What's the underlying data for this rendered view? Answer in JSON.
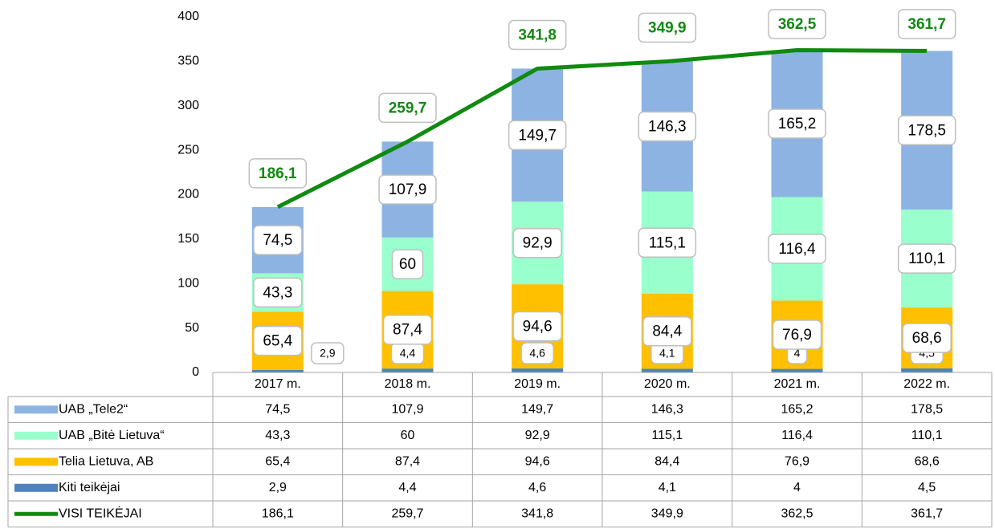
{
  "chart_data": {
    "type": "bar",
    "stacked": true,
    "categories": [
      "2017 m.",
      "2018 m.",
      "2019 m.",
      "2020 m.",
      "2021 m.",
      "2022 m."
    ],
    "series": [
      {
        "name": "UAB „Tele2“",
        "color": "#8db3e2",
        "values": [
          74.5,
          107.9,
          149.7,
          146.3,
          165.2,
          178.5
        ],
        "value_labels": [
          "74,5",
          "107,9",
          "149,7",
          "146,3",
          "165,2",
          "178,5"
        ]
      },
      {
        "name": "UAB „Bitė Lietuva“",
        "color": "#99ffcc",
        "values": [
          43.3,
          60,
          92.9,
          115.1,
          116.4,
          110.1
        ],
        "value_labels": [
          "43,3",
          "60",
          "92,9",
          "115,1",
          "116,4",
          "110,1"
        ]
      },
      {
        "name": "Telia Lietuva, AB",
        "color": "#ffc000",
        "values": [
          65.4,
          87.4,
          94.6,
          84.4,
          76.9,
          68.6
        ],
        "value_labels": [
          "65,4",
          "87,4",
          "94,6",
          "84,4",
          "76,9",
          "68,6"
        ]
      },
      {
        "name": "Kiti teikėjai",
        "color": "#4f81bd",
        "values": [
          2.9,
          4.4,
          4.6,
          4.1,
          4,
          4.5
        ],
        "value_labels": [
          "2,9",
          "4,4",
          "4,6",
          "4,1",
          "4",
          "4,5"
        ]
      },
      {
        "name": "VISI TEIKĖJAI",
        "type": "line",
        "color": "#108a10",
        "values": [
          186.1,
          259.7,
          341.8,
          349.9,
          362.5,
          361.7
        ],
        "value_labels": [
          "186,1",
          "259,7",
          "341,8",
          "349,9",
          "362,5",
          "361,7"
        ]
      }
    ],
    "ylim": [
      0,
      400
    ],
    "yticks": [
      0,
      50,
      100,
      150,
      200,
      250,
      300,
      350,
      400
    ],
    "data_table": true
  }
}
